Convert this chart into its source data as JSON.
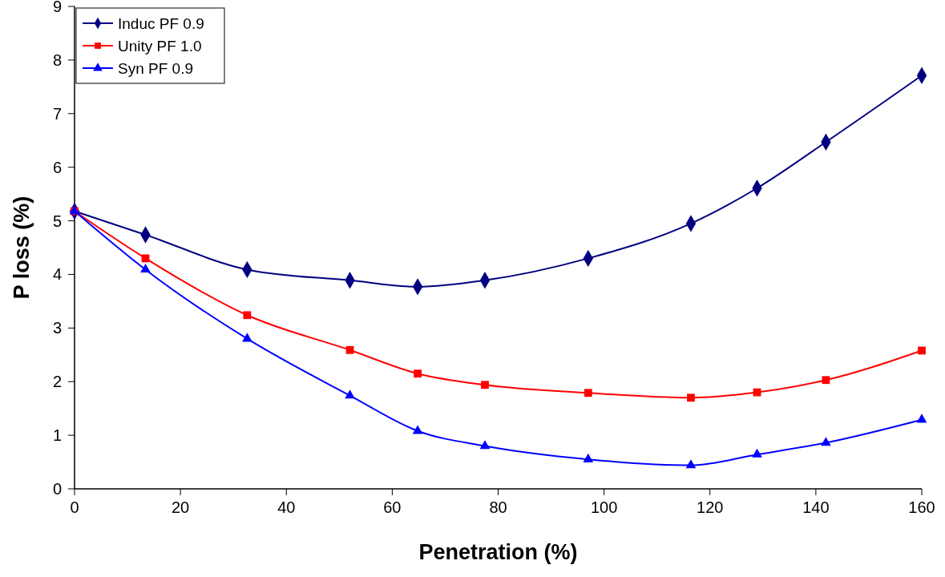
{
  "chart_data": {
    "type": "line",
    "xlabel": "Penetration (%)",
    "ylabel": "P loss (%)",
    "xlim": [
      0,
      160
    ],
    "xticks": [
      0,
      20,
      40,
      60,
      80,
      100,
      120,
      140,
      160
    ],
    "ylim": [
      0,
      9
    ],
    "yticks": [
      0,
      1,
      2,
      3,
      4,
      5,
      6,
      7,
      8,
      9
    ],
    "grid": false,
    "legend": "top left",
    "line_style": "solid",
    "x": [
      0,
      13.4,
      32.6,
      52,
      64.8,
      77.5,
      97,
      116.4,
      128.9,
      141.9,
      160
    ],
    "series": [
      {
        "name": "Induc PF 0.9",
        "color": "#000080",
        "marker": "diamond",
        "values": [
          5.18,
          4.74,
          4.09,
          3.89,
          3.77,
          3.89,
          4.3,
          4.95,
          5.61,
          6.47,
          7.71
        ]
      },
      {
        "name": "Unity PF 1.0",
        "color": "#ff0000",
        "marker": "square",
        "values": [
          5.18,
          4.3,
          3.24,
          2.59,
          2.15,
          1.94,
          1.79,
          1.7,
          1.8,
          2.03,
          2.58
        ]
      },
      {
        "name": "Syn PF 0.9",
        "color": "#0000ff",
        "marker": "triangle",
        "values": [
          5.18,
          4.09,
          2.8,
          1.74,
          1.08,
          0.8,
          0.55,
          0.44,
          0.64,
          0.86,
          1.29
        ]
      }
    ]
  }
}
